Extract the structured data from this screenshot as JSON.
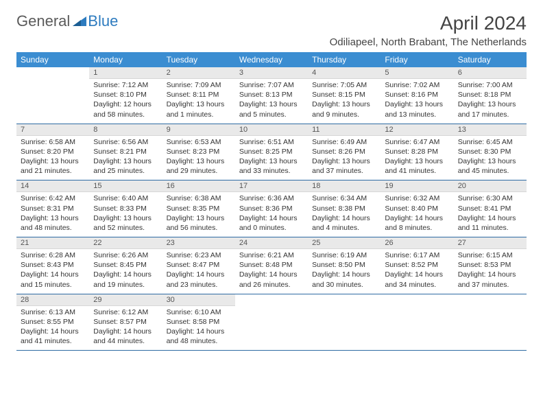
{
  "brand": {
    "word1": "General",
    "word2": "Blue"
  },
  "colors": {
    "header_bg": "#3b8dd1",
    "header_text": "#ffffff",
    "daynum_bg": "#e9e9e9",
    "rule": "#2d6aa3",
    "logo_gray": "#5a5a5a",
    "logo_blue": "#2d7bbf"
  },
  "title": "April 2024",
  "location": "Odiliapeel, North Brabant, The Netherlands",
  "weekdays": [
    "Sunday",
    "Monday",
    "Tuesday",
    "Wednesday",
    "Thursday",
    "Friday",
    "Saturday"
  ],
  "weeks": [
    [
      {
        "n": "",
        "sunrise": "",
        "sunset": "",
        "daylight": ""
      },
      {
        "n": "1",
        "sunrise": "Sunrise: 7:12 AM",
        "sunset": "Sunset: 8:10 PM",
        "daylight": "Daylight: 12 hours and 58 minutes."
      },
      {
        "n": "2",
        "sunrise": "Sunrise: 7:09 AM",
        "sunset": "Sunset: 8:11 PM",
        "daylight": "Daylight: 13 hours and 1 minutes."
      },
      {
        "n": "3",
        "sunrise": "Sunrise: 7:07 AM",
        "sunset": "Sunset: 8:13 PM",
        "daylight": "Daylight: 13 hours and 5 minutes."
      },
      {
        "n": "4",
        "sunrise": "Sunrise: 7:05 AM",
        "sunset": "Sunset: 8:15 PM",
        "daylight": "Daylight: 13 hours and 9 minutes."
      },
      {
        "n": "5",
        "sunrise": "Sunrise: 7:02 AM",
        "sunset": "Sunset: 8:16 PM",
        "daylight": "Daylight: 13 hours and 13 minutes."
      },
      {
        "n": "6",
        "sunrise": "Sunrise: 7:00 AM",
        "sunset": "Sunset: 8:18 PM",
        "daylight": "Daylight: 13 hours and 17 minutes."
      }
    ],
    [
      {
        "n": "7",
        "sunrise": "Sunrise: 6:58 AM",
        "sunset": "Sunset: 8:20 PM",
        "daylight": "Daylight: 13 hours and 21 minutes."
      },
      {
        "n": "8",
        "sunrise": "Sunrise: 6:56 AM",
        "sunset": "Sunset: 8:21 PM",
        "daylight": "Daylight: 13 hours and 25 minutes."
      },
      {
        "n": "9",
        "sunrise": "Sunrise: 6:53 AM",
        "sunset": "Sunset: 8:23 PM",
        "daylight": "Daylight: 13 hours and 29 minutes."
      },
      {
        "n": "10",
        "sunrise": "Sunrise: 6:51 AM",
        "sunset": "Sunset: 8:25 PM",
        "daylight": "Daylight: 13 hours and 33 minutes."
      },
      {
        "n": "11",
        "sunrise": "Sunrise: 6:49 AM",
        "sunset": "Sunset: 8:26 PM",
        "daylight": "Daylight: 13 hours and 37 minutes."
      },
      {
        "n": "12",
        "sunrise": "Sunrise: 6:47 AM",
        "sunset": "Sunset: 8:28 PM",
        "daylight": "Daylight: 13 hours and 41 minutes."
      },
      {
        "n": "13",
        "sunrise": "Sunrise: 6:45 AM",
        "sunset": "Sunset: 8:30 PM",
        "daylight": "Daylight: 13 hours and 45 minutes."
      }
    ],
    [
      {
        "n": "14",
        "sunrise": "Sunrise: 6:42 AM",
        "sunset": "Sunset: 8:31 PM",
        "daylight": "Daylight: 13 hours and 48 minutes."
      },
      {
        "n": "15",
        "sunrise": "Sunrise: 6:40 AM",
        "sunset": "Sunset: 8:33 PM",
        "daylight": "Daylight: 13 hours and 52 minutes."
      },
      {
        "n": "16",
        "sunrise": "Sunrise: 6:38 AM",
        "sunset": "Sunset: 8:35 PM",
        "daylight": "Daylight: 13 hours and 56 minutes."
      },
      {
        "n": "17",
        "sunrise": "Sunrise: 6:36 AM",
        "sunset": "Sunset: 8:36 PM",
        "daylight": "Daylight: 14 hours and 0 minutes."
      },
      {
        "n": "18",
        "sunrise": "Sunrise: 6:34 AM",
        "sunset": "Sunset: 8:38 PM",
        "daylight": "Daylight: 14 hours and 4 minutes."
      },
      {
        "n": "19",
        "sunrise": "Sunrise: 6:32 AM",
        "sunset": "Sunset: 8:40 PM",
        "daylight": "Daylight: 14 hours and 8 minutes."
      },
      {
        "n": "20",
        "sunrise": "Sunrise: 6:30 AM",
        "sunset": "Sunset: 8:41 PM",
        "daylight": "Daylight: 14 hours and 11 minutes."
      }
    ],
    [
      {
        "n": "21",
        "sunrise": "Sunrise: 6:28 AM",
        "sunset": "Sunset: 8:43 PM",
        "daylight": "Daylight: 14 hours and 15 minutes."
      },
      {
        "n": "22",
        "sunrise": "Sunrise: 6:26 AM",
        "sunset": "Sunset: 8:45 PM",
        "daylight": "Daylight: 14 hours and 19 minutes."
      },
      {
        "n": "23",
        "sunrise": "Sunrise: 6:23 AM",
        "sunset": "Sunset: 8:47 PM",
        "daylight": "Daylight: 14 hours and 23 minutes."
      },
      {
        "n": "24",
        "sunrise": "Sunrise: 6:21 AM",
        "sunset": "Sunset: 8:48 PM",
        "daylight": "Daylight: 14 hours and 26 minutes."
      },
      {
        "n": "25",
        "sunrise": "Sunrise: 6:19 AM",
        "sunset": "Sunset: 8:50 PM",
        "daylight": "Daylight: 14 hours and 30 minutes."
      },
      {
        "n": "26",
        "sunrise": "Sunrise: 6:17 AM",
        "sunset": "Sunset: 8:52 PM",
        "daylight": "Daylight: 14 hours and 34 minutes."
      },
      {
        "n": "27",
        "sunrise": "Sunrise: 6:15 AM",
        "sunset": "Sunset: 8:53 PM",
        "daylight": "Daylight: 14 hours and 37 minutes."
      }
    ],
    [
      {
        "n": "28",
        "sunrise": "Sunrise: 6:13 AM",
        "sunset": "Sunset: 8:55 PM",
        "daylight": "Daylight: 14 hours and 41 minutes."
      },
      {
        "n": "29",
        "sunrise": "Sunrise: 6:12 AM",
        "sunset": "Sunset: 8:57 PM",
        "daylight": "Daylight: 14 hours and 44 minutes."
      },
      {
        "n": "30",
        "sunrise": "Sunrise: 6:10 AM",
        "sunset": "Sunset: 8:58 PM",
        "daylight": "Daylight: 14 hours and 48 minutes."
      },
      {
        "n": "",
        "sunrise": "",
        "sunset": "",
        "daylight": ""
      },
      {
        "n": "",
        "sunrise": "",
        "sunset": "",
        "daylight": ""
      },
      {
        "n": "",
        "sunrise": "",
        "sunset": "",
        "daylight": ""
      },
      {
        "n": "",
        "sunrise": "",
        "sunset": "",
        "daylight": ""
      }
    ]
  ]
}
